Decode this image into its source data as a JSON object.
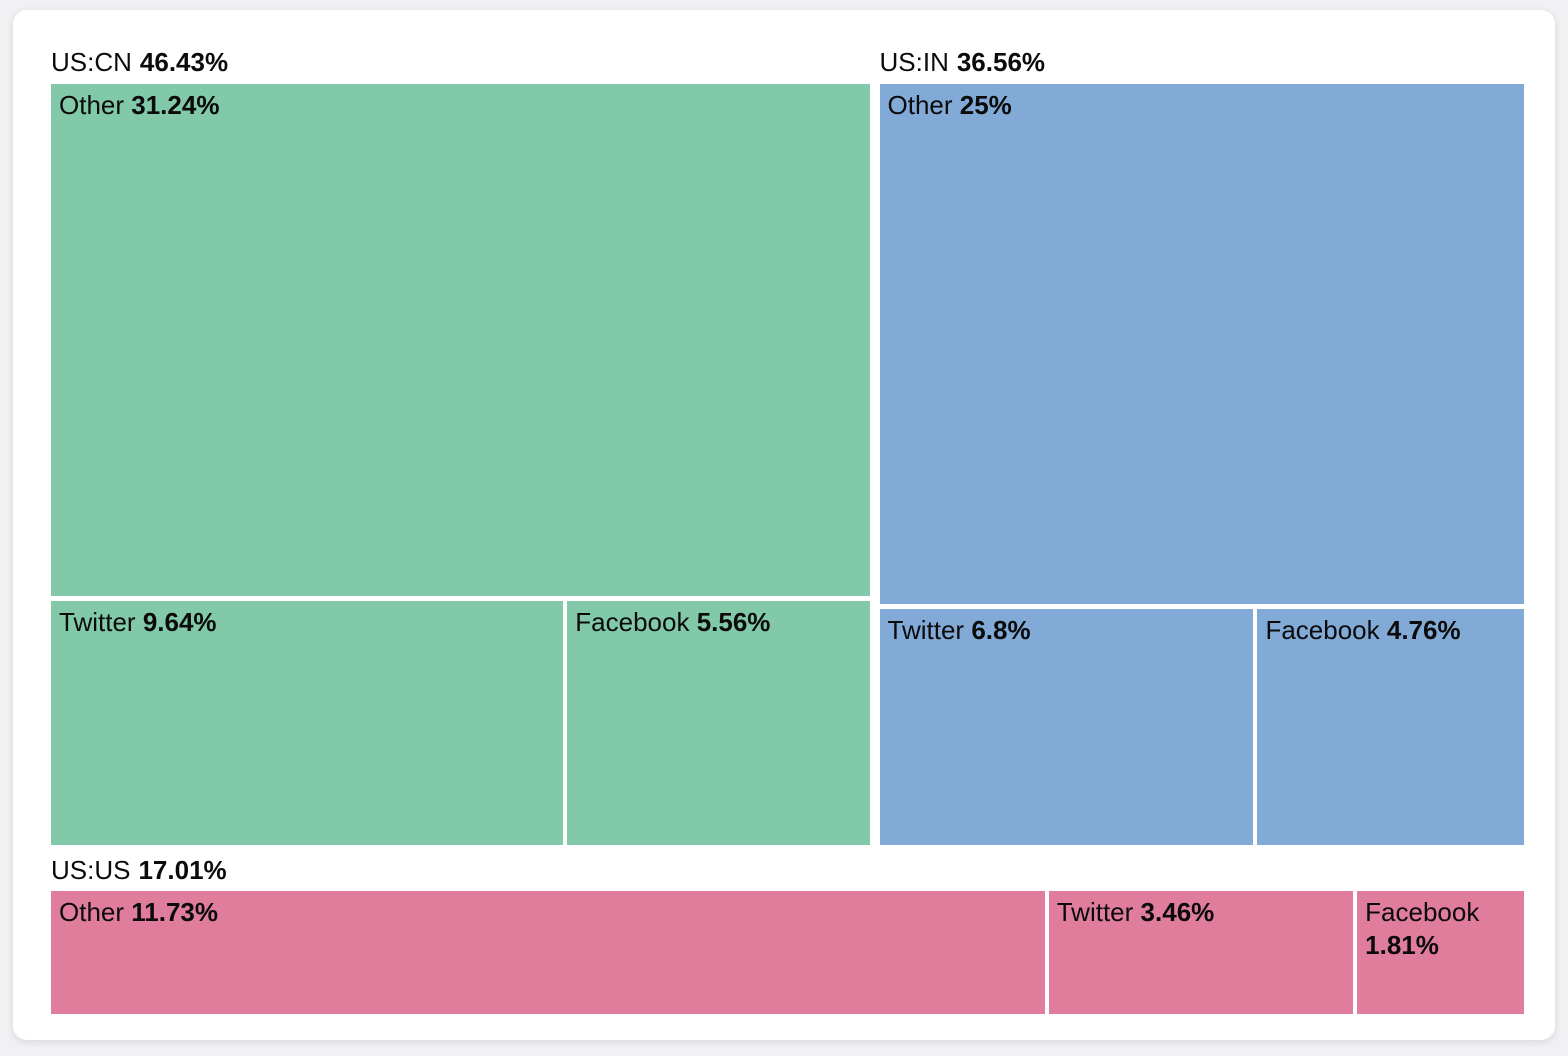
{
  "page": {
    "background": "#f1f1f3",
    "card_background": "#ffffff",
    "text_color": "#0b0b0b"
  },
  "chart_data": {
    "type": "treemap",
    "unit": "%",
    "legend_position": "none",
    "groups": [
      {
        "label": "US:CN",
        "value": 46.43,
        "value_label": "46.43%",
        "color": "#82c9a9",
        "children": [
          {
            "label": "Other",
            "value": 31.24,
            "value_label": "31.24%"
          },
          {
            "label": "Twitter",
            "value": 9.64,
            "value_label": "9.64%"
          },
          {
            "label": "Facebook",
            "value": 5.56,
            "value_label": "5.56%"
          }
        ]
      },
      {
        "label": "US:IN",
        "value": 36.56,
        "value_label": "36.56%",
        "color": "#81aad7",
        "children": [
          {
            "label": "Other",
            "value": 25,
            "value_label": "25%"
          },
          {
            "label": "Twitter",
            "value": 6.8,
            "value_label": "6.8%"
          },
          {
            "label": "Facebook",
            "value": 4.76,
            "value_label": "4.76%"
          }
        ]
      },
      {
        "label": "US:US",
        "value": 17.01,
        "value_label": "17.01%",
        "color": "#e07d9d",
        "children": [
          {
            "label": "Other",
            "value": 11.73,
            "value_label": "11.73%"
          },
          {
            "label": "Twitter",
            "value": 3.46,
            "value_label": "3.46%"
          },
          {
            "label": "Facebook",
            "value": 1.81,
            "value_label": "1.81%"
          }
        ]
      }
    ]
  }
}
